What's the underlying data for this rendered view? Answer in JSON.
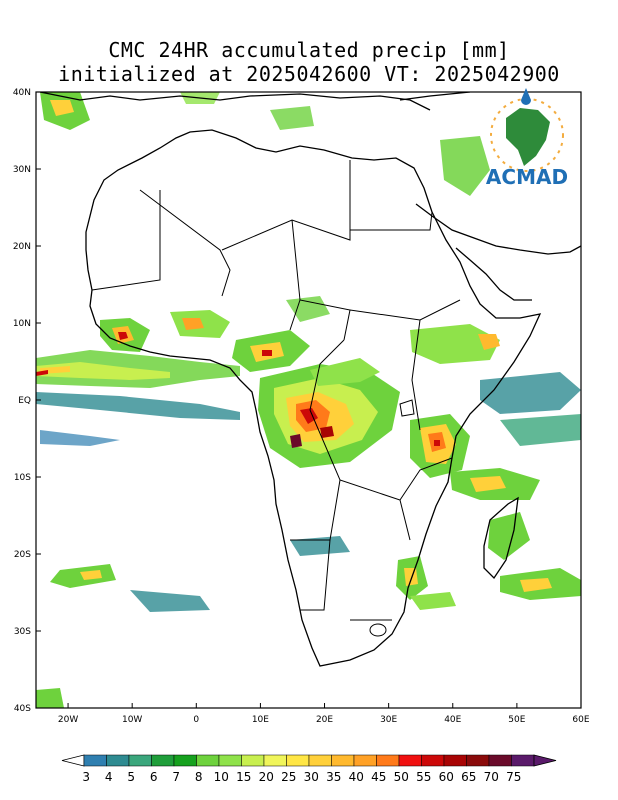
{
  "title": {
    "line1": "CMC 24HR accumulated precip [mm]",
    "line2": "initialized at 2025042600 VT: 2025042900"
  },
  "axes": {
    "lat_labels": [
      "40N",
      "30N",
      "20N",
      "10N",
      "EQ",
      "10S",
      "20S",
      "30S",
      "40S"
    ],
    "lat_values": [
      40,
      30,
      20,
      10,
      0,
      -10,
      -20,
      -30,
      -40
    ],
    "lon_labels": [
      "20W",
      "10W",
      "0",
      "10E",
      "20E",
      "30E",
      "40E",
      "50E",
      "60E"
    ],
    "lon_values": [
      -20,
      -10,
      0,
      10,
      20,
      30,
      40,
      50,
      60
    ],
    "lon_range": [
      -25,
      60
    ],
    "lat_range": [
      -40,
      40
    ]
  },
  "colorbar": {
    "labels": [
      "3",
      "4",
      "5",
      "6",
      "7",
      "8",
      "10",
      "15",
      "20",
      "25",
      "30",
      "35",
      "40",
      "45",
      "50",
      "55",
      "60",
      "65",
      "70",
      "75"
    ],
    "colors": [
      "#2f7fb0",
      "#2e8b91",
      "#3aa67c",
      "#1f9e3a",
      "#16a11e",
      "#6ed23d",
      "#8fe24a",
      "#c8ef4f",
      "#f0f55a",
      "#ffe645",
      "#ffd03a",
      "#ffb92e",
      "#ffa126",
      "#ff7a1a",
      "#f01010",
      "#cc0808",
      "#a80404",
      "#8a0a0a",
      "#6a0a2a",
      "#5a1a6a"
    ]
  },
  "logo": {
    "text": "ACMAD",
    "name": "acmad-logo"
  },
  "colors": {
    "coast": "#000000",
    "frame": "#000000",
    "background": "#ffffff"
  }
}
